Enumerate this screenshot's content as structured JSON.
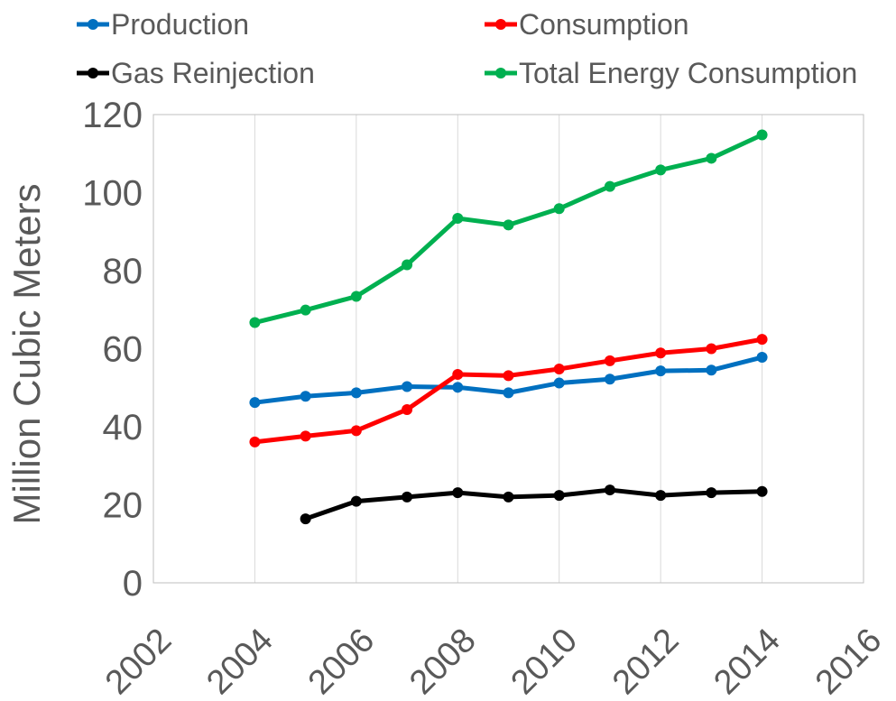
{
  "chart_data": {
    "type": "line",
    "title": "",
    "xlabel": "",
    "ylabel": "Million Cubic Meters",
    "xlim": [
      2002,
      2016
    ],
    "ylim": [
      0,
      120
    ],
    "x_ticks": [
      2002,
      2004,
      2006,
      2008,
      2010,
      2012,
      2014,
      2016
    ],
    "y_ticks": [
      0,
      20,
      40,
      60,
      80,
      100,
      120
    ],
    "grid": "vertical",
    "legend_position": "top",
    "series": [
      {
        "name": "Production",
        "color": "#0070C0",
        "x": [
          2004,
          2005,
          2006,
          2007,
          2008,
          2009,
          2010,
          2011,
          2012,
          2013,
          2014
        ],
        "values": [
          46.2,
          47.8,
          48.7,
          50.3,
          50.1,
          48.7,
          51.2,
          52.2,
          54.3,
          54.5,
          57.8
        ]
      },
      {
        "name": "Consumption",
        "color": "#FF0000",
        "x": [
          2004,
          2005,
          2006,
          2007,
          2008,
          2009,
          2010,
          2011,
          2012,
          2013,
          2014
        ],
        "values": [
          36.1,
          37.6,
          39.0,
          44.4,
          53.4,
          53.1,
          54.8,
          56.9,
          58.9,
          60.0,
          62.4
        ]
      },
      {
        "name": "Gas Reinjection",
        "color": "#000000",
        "x": [
          2005,
          2006,
          2007,
          2008,
          2009,
          2010,
          2011,
          2012,
          2013,
          2014
        ],
        "values": [
          16.4,
          20.9,
          22.0,
          23.1,
          22.0,
          22.4,
          23.8,
          22.4,
          23.1,
          23.4
        ]
      },
      {
        "name": "Total Energy Consumption",
        "color": "#00B050",
        "x": [
          2004,
          2005,
          2006,
          2007,
          2008,
          2009,
          2010,
          2011,
          2012,
          2013,
          2014
        ],
        "values": [
          66.7,
          69.9,
          73.4,
          81.5,
          93.4,
          91.7,
          95.9,
          101.6,
          105.8,
          108.8,
          114.8
        ]
      }
    ]
  }
}
